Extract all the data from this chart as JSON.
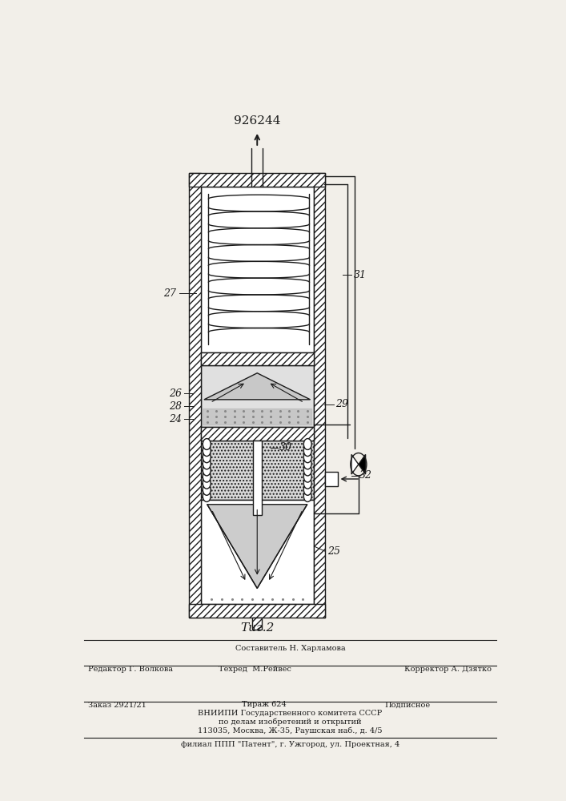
{
  "patent_number": "926244",
  "fig_label": "Τиг.2",
  "bg_color": "#f2efe9",
  "line_color": "#1a1a1a",
  "footer_line0_center": "Составитель Н. Харламова",
  "footer_line1_left": "Редактор Г. Волкова",
  "footer_line1_center": "Техред  М.Рейвес",
  "footer_line1_right": "Корректор А. Дзятко",
  "footer_line2_left": "Заказ 2921/21",
  "footer_line2_center": "Тираж 624",
  "footer_line2_right": "Подписное",
  "footer_line3": "ВНИИПИ Государственного комитета СССР",
  "footer_line4": "по делам изобретений и открытий",
  "footer_line5": "113035, Москва, Ж-35, Раушская наб., д. 4/5",
  "footer_line6": "филиал ППП \"Патент\", г. Ужгород, ул. Проектная, 4"
}
